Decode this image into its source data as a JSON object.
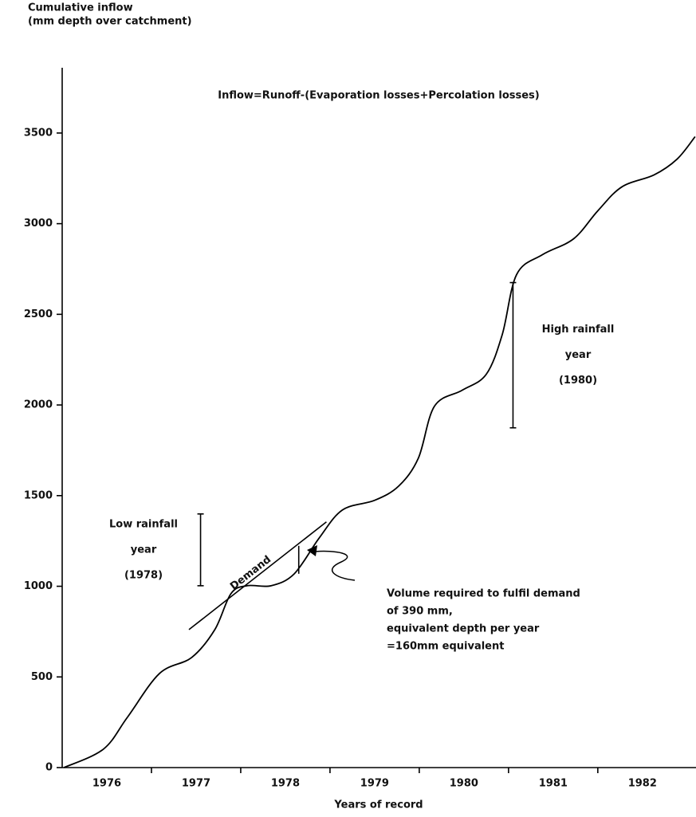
{
  "chart_data": {
    "type": "line",
    "title": "Inflow=Runoff-(Evaporation losses+Percolation losses)",
    "y_label": [
      "Cumulative inflow",
      "(mm depth over catchment)"
    ],
    "x_label": "Years of record",
    "xlim": [
      1976,
      1983.1
    ],
    "ylim": [
      0,
      3860
    ],
    "yticks": [
      0,
      500,
      1000,
      1500,
      2000,
      2500,
      3000,
      3500
    ],
    "xticks": [
      {
        "value": 1976.5,
        "label": "1976"
      },
      {
        "value": 1977.5,
        "label": "1977"
      },
      {
        "value": 1978.5,
        "label": "1978"
      },
      {
        "value": 1979.5,
        "label": "1979"
      },
      {
        "value": 1980.5,
        "label": "1980"
      },
      {
        "value": 1981.5,
        "label": "1981"
      },
      {
        "value": 1982.5,
        "label": "1982"
      }
    ],
    "xminor_ticks": [
      1977,
      1978,
      1979,
      1980,
      1981,
      1982
    ],
    "series": [
      {
        "color": "#000000",
        "x": [
          1976.02,
          1976.46,
          1976.73,
          1977.09,
          1977.45,
          1977.71,
          1977.89,
          1978.07,
          1978.34,
          1978.6,
          1978.88,
          1979.14,
          1979.5,
          1979.77,
          1979.99,
          1980.17,
          1980.48,
          1980.75,
          1980.93,
          1981.09,
          1981.38,
          1981.73,
          1982.0,
          1982.27,
          1982.63,
          1982.89,
          1983.09
        ],
        "values": [
          0,
          101,
          277,
          519,
          607,
          761,
          959,
          1003,
          1003,
          1069,
          1267,
          1421,
          1474,
          1553,
          1707,
          1993,
          2081,
          2169,
          2389,
          2719,
          2829,
          2917,
          3071,
          3203,
          3269,
          3357,
          3480
        ]
      }
    ],
    "demand_line": {
      "label": "Demand",
      "x": [
        1977.42,
        1978.96
      ],
      "values": [
        761,
        1355
      ]
    },
    "deficit_bar": {
      "x": 1978.65,
      "values": [
        1069,
        1223
      ]
    },
    "low_rainfall": {
      "lines": [
        "Low rainfall",
        "year",
        "(1978)"
      ],
      "x": 1977.55,
      "values": [
        1003,
        1399
      ]
    },
    "high_rainfall": {
      "lines": [
        "High rainfall",
        "year",
        "(1980)"
      ],
      "x": 1981.05,
      "values": [
        1874,
        2675
      ]
    },
    "volume_note": [
      "Volume required to fulfil demand",
      "of  390 mm,",
      "equivalent depth per year",
      "=160mm equivalent"
    ]
  }
}
